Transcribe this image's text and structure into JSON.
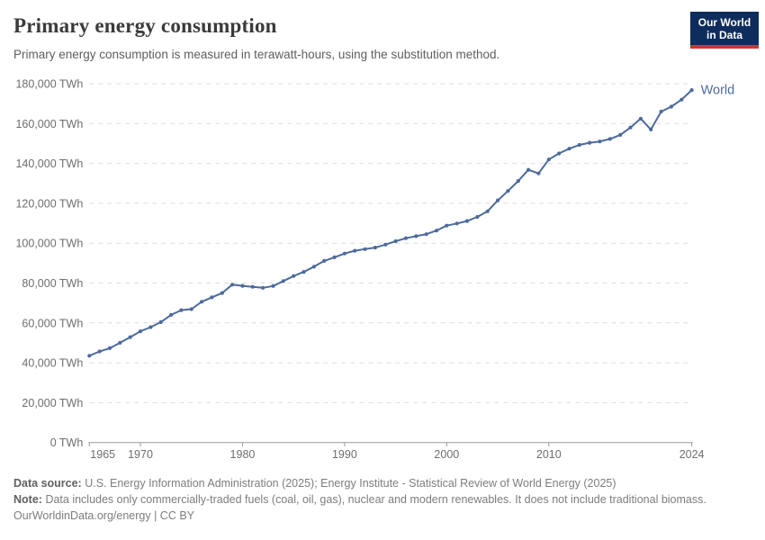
{
  "header": {
    "title": "Primary energy consumption",
    "subtitle": "Primary energy consumption is measured in terawatt-hours, using the substitution method.",
    "logo": {
      "line1": "Our World",
      "line2": "in Data",
      "bg_color": "#0f2d5c",
      "accent_color": "#cf342e"
    }
  },
  "chart_data": {
    "type": "line",
    "title": "Primary energy consumption",
    "unit": "TWh",
    "xlabel": "",
    "ylabel": "",
    "xlim": [
      1965,
      2024
    ],
    "ylim": [
      0,
      180000
    ],
    "grid": "horizontal-dashed",
    "legend_position": "end-of-line",
    "end_label": "World",
    "line_color": "#4c6a9c",
    "xticks": [
      1965,
      1970,
      1980,
      1990,
      2000,
      2010,
      2024
    ],
    "yticks": [
      0,
      20000,
      40000,
      60000,
      80000,
      100000,
      120000,
      140000,
      160000,
      180000
    ],
    "ytick_labels": [
      "0 TWh",
      "20,000 TWh",
      "40,000 TWh",
      "60,000 TWh",
      "80,000 TWh",
      "100,000 TWh",
      "120,000 TWh",
      "140,000 TWh",
      "160,000 TWh",
      "180,000 TWh"
    ],
    "series": [
      {
        "name": "World",
        "color": "#4c6a9c",
        "x": [
          1965,
          1966,
          1967,
          1968,
          1969,
          1970,
          1971,
          1972,
          1973,
          1974,
          1975,
          1976,
          1977,
          1978,
          1979,
          1980,
          1981,
          1982,
          1983,
          1984,
          1985,
          1986,
          1987,
          1988,
          1989,
          1990,
          1991,
          1992,
          1993,
          1994,
          1995,
          1996,
          1997,
          1998,
          1999,
          2000,
          2001,
          2002,
          2003,
          2004,
          2005,
          2006,
          2007,
          2008,
          2009,
          2010,
          2011,
          2012,
          2013,
          2014,
          2015,
          2016,
          2017,
          2018,
          2019,
          2020,
          2021,
          2022,
          2023,
          2024
        ],
        "values": [
          43500,
          45700,
          47300,
          50000,
          52850,
          55800,
          57900,
          60400,
          64000,
          66400,
          66900,
          70600,
          72800,
          75000,
          79200,
          78600,
          78100,
          77600,
          78500,
          81000,
          83500,
          85600,
          88200,
          91100,
          92900,
          94800,
          96200,
          97000,
          97800,
          99300,
          101000,
          102500,
          103500,
          104500,
          106300,
          108800,
          109900,
          111100,
          113200,
          116000,
          121500,
          126200,
          131200,
          136800,
          135000,
          142000,
          145000,
          147400,
          149300,
          150400,
          151000,
          152300,
          154300,
          158000,
          162500,
          157000,
          166000,
          168500,
          172000,
          176800
        ]
      }
    ]
  },
  "footer": {
    "data_source_label": "Data source:",
    "data_source_text": "U.S. Energy Information Administration (2025); Energy Institute - Statistical Review of World Energy (2025)",
    "note_label": "Note:",
    "note_text": "Data includes only commercially-traded fuels (coal, oil, gas), nuclear and modern renewables. It does not include traditional biomass.",
    "license_line": "OurWorldinData.org/energy | CC BY"
  }
}
